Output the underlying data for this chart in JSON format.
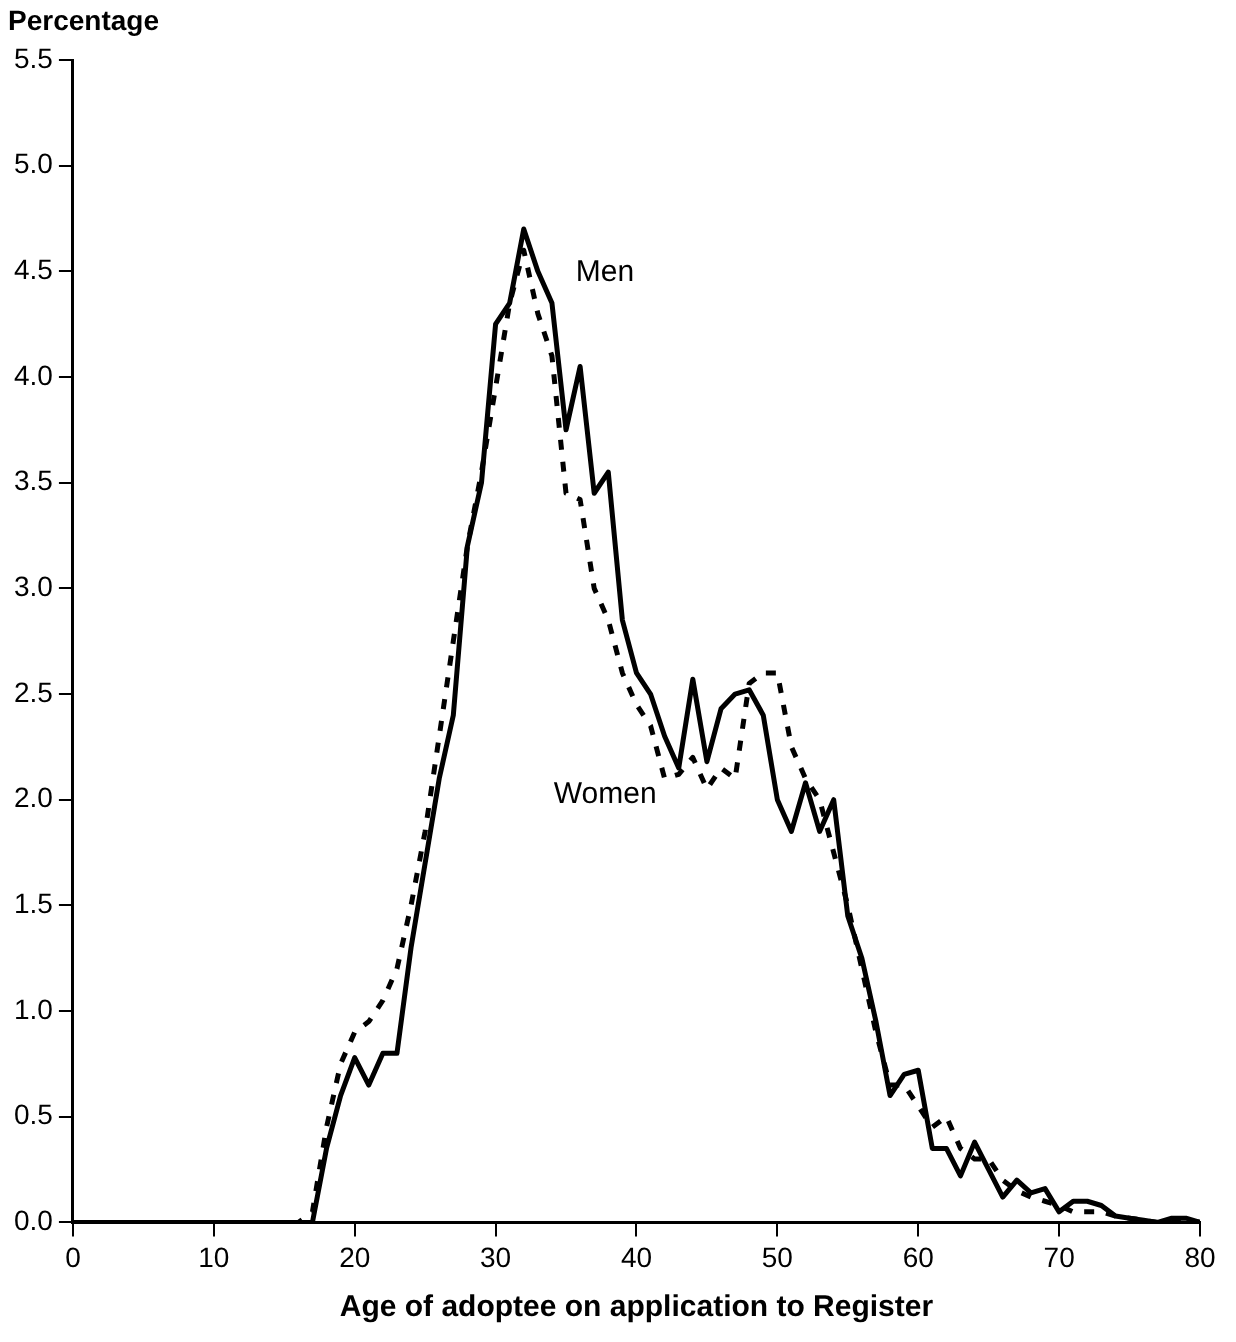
{
  "chart_data": {
    "type": "line",
    "xlabel": "Age of adoptee on application to Register",
    "ylabel": "Percentage",
    "x": [
      0,
      16,
      17,
      18,
      19,
      20,
      21,
      22,
      23,
      24,
      25,
      26,
      27,
      28,
      29,
      30,
      31,
      32,
      33,
      34,
      35,
      36,
      37,
      38,
      39,
      40,
      41,
      42,
      43,
      44,
      45,
      46,
      47,
      48,
      49,
      50,
      51,
      52,
      53,
      54,
      55,
      56,
      57,
      58,
      59,
      60,
      61,
      62,
      63,
      64,
      65,
      66,
      67,
      68,
      69,
      70,
      71,
      72,
      73,
      74,
      75,
      76,
      77,
      78,
      79,
      80
    ],
    "series": [
      {
        "name": "Men",
        "color": "#000000",
        "line_style": "solid",
        "values": [
          0,
          0,
          0,
          0.35,
          0.6,
          0.78,
          0.65,
          0.8,
          0.8,
          1.3,
          1.7,
          2.1,
          2.4,
          3.2,
          3.5,
          4.25,
          4.35,
          4.7,
          4.5,
          4.35,
          3.75,
          4.05,
          3.45,
          3.55,
          2.85,
          2.6,
          2.5,
          2.3,
          2.15,
          2.57,
          2.18,
          2.43,
          2.5,
          2.52,
          2.4,
          2.0,
          1.85,
          2.08,
          1.85,
          2.0,
          1.45,
          1.25,
          0.95,
          0.6,
          0.7,
          0.72,
          0.35,
          0.35,
          0.22,
          0.38,
          0.25,
          0.12,
          0.2,
          0.14,
          0.16,
          0.05,
          0.1,
          0.1,
          0.08,
          0.03,
          0.02,
          0.01,
          0,
          0.02,
          0.02,
          0
        ]
      },
      {
        "name": "Women",
        "color": "#000000",
        "line_style": "dashed",
        "values": [
          0,
          0,
          0.05,
          0.45,
          0.75,
          0.9,
          0.95,
          1.05,
          1.2,
          1.5,
          1.85,
          2.3,
          2.75,
          3.2,
          3.55,
          3.95,
          4.35,
          4.6,
          4.3,
          4.1,
          3.45,
          3.42,
          3.0,
          2.85,
          2.6,
          2.45,
          2.35,
          2.1,
          2.12,
          2.2,
          2.05,
          2.15,
          2.1,
          2.55,
          2.6,
          2.6,
          2.25,
          2.1,
          2.0,
          1.75,
          1.5,
          1.2,
          0.9,
          0.65,
          0.65,
          0.55,
          0.45,
          0.5,
          0.35,
          0.3,
          0.3,
          0.2,
          0.15,
          0.12,
          0.1,
          0.08,
          0.05,
          0.05,
          0.05,
          0.03,
          0.02,
          0.01,
          0,
          0,
          0.01,
          0
        ]
      }
    ],
    "xlim": [
      0,
      80
    ],
    "xticks": [
      0,
      10,
      20,
      30,
      40,
      50,
      60,
      70,
      80
    ],
    "ylim": [
      0,
      5.5
    ],
    "yticks": [
      {
        "value": 0,
        "label": "0.0"
      },
      0.5,
      {
        "value": 1,
        "label": "1.0"
      },
      1.5,
      {
        "value": 2,
        "label": "2.0"
      },
      2.5,
      {
        "value": 3,
        "label": "3.0"
      },
      3.5,
      {
        "value": 4,
        "label": "4.0"
      },
      4.5,
      {
        "value": 5,
        "label": "5.0"
      },
      5.5
    ],
    "grid": false,
    "legend": false,
    "marker": "none"
  }
}
